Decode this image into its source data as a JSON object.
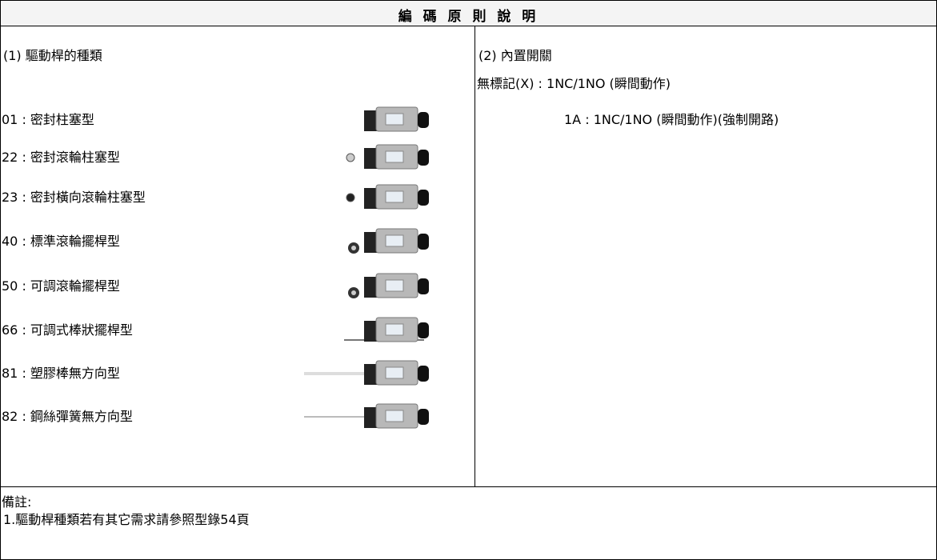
{
  "title": "編 碼 原 則 說 明",
  "left": {
    "header": "(1) 驅動桿的種類",
    "items": [
      "01 : 密封柱塞型",
      "22 : 密封滾輪柱塞型",
      "23 : 密封橫向滾輪柱塞型",
      "40 : 標準滾輪擺桿型",
      "50 : 可調滾輪擺桿型",
      "66 : 可調式棒狀擺桿型",
      "81 : 塑膠棒無方向型",
      "82 : 鋼絲彈簧無方向型"
    ]
  },
  "right": {
    "header": "(2) 內置開關",
    "lines": [
      "無標記(X) : 1NC/1NO (瞬間動作)",
      "1A : 1NC/1NO (瞬間動作)(強制開路)"
    ]
  },
  "notes": {
    "label": "備註:",
    "lines": [
      "1.驅動桿種類若有其它需求請參照型錄54頁"
    ]
  }
}
